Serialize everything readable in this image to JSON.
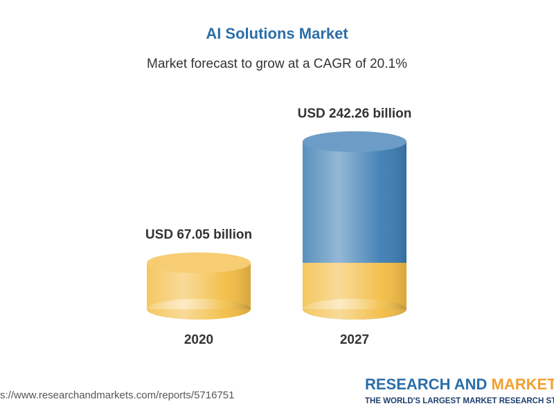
{
  "chart_data": {
    "type": "cylinder",
    "title": "AI Solutions Market",
    "subtitle": "Market forecast to grow at a CAGR of 20.1%",
    "categories": [
      "2020",
      "2027"
    ],
    "values": [
      67.05,
      242.26
    ],
    "value_labels": [
      "USD 67.05 billion",
      "USD 242.26 billion"
    ],
    "colors": {
      "base": "#f3bd45",
      "top": "#3d7db3"
    },
    "ylim": [
      0,
      250
    ]
  },
  "footer": {
    "url": "s://www.researchandmarkets.com/reports/5716751",
    "logo_first": "RESEARCH AND ",
    "logo_second": "MARKET",
    "tagline": "THE WORLD'S LARGEST MARKET RESEARCH ST"
  }
}
